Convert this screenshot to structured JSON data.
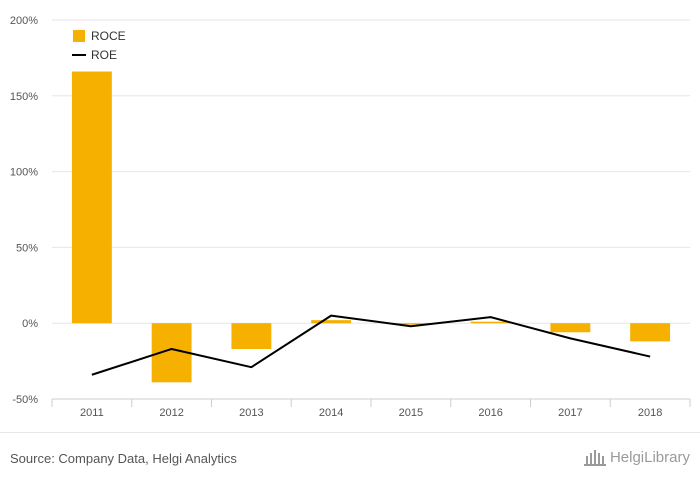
{
  "chart_data": {
    "type": "bar",
    "categories": [
      "2011",
      "2012",
      "2013",
      "2014",
      "2015",
      "2016",
      "2017",
      "2018"
    ],
    "series": [
      {
        "name": "ROCE",
        "kind": "bar",
        "color": "#f5b000",
        "values": [
          166,
          -39,
          -17,
          2,
          -1,
          1,
          -6,
          -12
        ]
      },
      {
        "name": "ROE",
        "kind": "line",
        "color": "#000000",
        "values": [
          -34,
          -17,
          -29,
          5,
          -2,
          4,
          -10,
          -22
        ]
      }
    ],
    "ylim": [
      -50,
      200
    ],
    "yticks": [
      -50,
      0,
      50,
      100,
      150,
      200
    ],
    "ytick_labels": [
      "-50%",
      "0%",
      "50%",
      "100%",
      "150%",
      "200%"
    ],
    "legend": [
      "ROCE",
      "ROE"
    ],
    "legend_position": "top-left",
    "grid": true
  },
  "footer": {
    "source": "Source: Company Data, Helgi Analytics",
    "logo_text": "HelgiLibrary"
  }
}
